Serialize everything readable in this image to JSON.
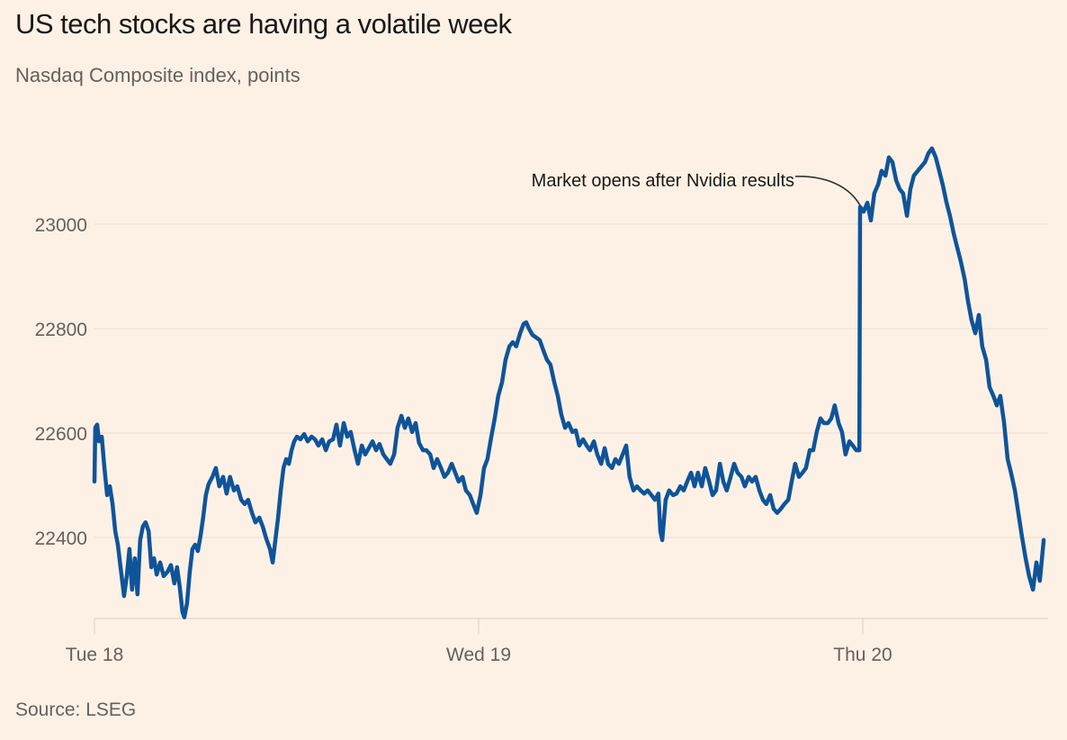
{
  "chart_data": {
    "type": "line",
    "title": "US tech stocks are having a volatile week",
    "subtitle": "Nasdaq Composite index, points",
    "source": "Source: LSEG",
    "xlabel": "",
    "ylabel": "Nasdaq Composite index, points",
    "x_unit": "days since Tue 18 open",
    "x_ticks": [
      {
        "value": 0,
        "label": "Tue 18"
      },
      {
        "value": 1,
        "label": "Wed 19"
      },
      {
        "value": 2,
        "label": "Thu 20"
      }
    ],
    "y_ticks": [
      {
        "value": 22400,
        "label": "22400"
      },
      {
        "value": 22600,
        "label": "22600"
      },
      {
        "value": 22800,
        "label": "22800"
      },
      {
        "value": 23000,
        "label": "23000"
      }
    ],
    "ylim": [
      22245,
      23180
    ],
    "xlim": [
      0,
      2.48
    ],
    "grid": true,
    "line_color": "#0f5499",
    "annotations": [
      {
        "text": "Market opens after Nvidia results",
        "x": 2.0,
        "y": 23033
      }
    ],
    "series": [
      {
        "name": "Nasdaq Composite",
        "points": [
          [
            0.0,
            22507
          ],
          [
            0.002,
            22610
          ],
          [
            0.007,
            22616
          ],
          [
            0.012,
            22584
          ],
          [
            0.019,
            22593
          ],
          [
            0.026,
            22533
          ],
          [
            0.033,
            22481
          ],
          [
            0.04,
            22498
          ],
          [
            0.047,
            22464
          ],
          [
            0.054,
            22412
          ],
          [
            0.061,
            22386
          ],
          [
            0.068,
            22343
          ],
          [
            0.077,
            22288
          ],
          [
            0.084,
            22326
          ],
          [
            0.091,
            22378
          ],
          [
            0.098,
            22300
          ],
          [
            0.105,
            22360
          ],
          [
            0.112,
            22291
          ],
          [
            0.119,
            22395
          ],
          [
            0.126,
            22421
          ],
          [
            0.133,
            22429
          ],
          [
            0.141,
            22412
          ],
          [
            0.148,
            22343
          ],
          [
            0.155,
            22360
          ],
          [
            0.162,
            22329
          ],
          [
            0.171,
            22352
          ],
          [
            0.18,
            22326
          ],
          [
            0.19,
            22334
          ],
          [
            0.199,
            22347
          ],
          [
            0.208,
            22312
          ],
          [
            0.215,
            22343
          ],
          [
            0.222,
            22305
          ],
          [
            0.229,
            22257
          ],
          [
            0.234,
            22247
          ],
          [
            0.241,
            22274
          ],
          [
            0.248,
            22334
          ],
          [
            0.255,
            22378
          ],
          [
            0.262,
            22386
          ],
          [
            0.269,
            22374
          ],
          [
            0.276,
            22403
          ],
          [
            0.283,
            22438
          ],
          [
            0.29,
            22481
          ],
          [
            0.297,
            22502
          ],
          [
            0.307,
            22516
          ],
          [
            0.316,
            22533
          ],
          [
            0.325,
            22498
          ],
          [
            0.335,
            22516
          ],
          [
            0.344,
            22484
          ],
          [
            0.353,
            22516
          ],
          [
            0.363,
            22490
          ],
          [
            0.372,
            22498
          ],
          [
            0.382,
            22472
          ],
          [
            0.391,
            22464
          ],
          [
            0.4,
            22472
          ],
          [
            0.41,
            22447
          ],
          [
            0.419,
            22429
          ],
          [
            0.429,
            22438
          ],
          [
            0.438,
            22421
          ],
          [
            0.447,
            22398
          ],
          [
            0.457,
            22378
          ],
          [
            0.464,
            22352
          ],
          [
            0.471,
            22395
          ],
          [
            0.478,
            22438
          ],
          [
            0.485,
            22490
          ],
          [
            0.492,
            22533
          ],
          [
            0.499,
            22550
          ],
          [
            0.506,
            22541
          ],
          [
            0.513,
            22567
          ],
          [
            0.52,
            22584
          ],
          [
            0.527,
            22593
          ],
          [
            0.536,
            22588
          ],
          [
            0.546,
            22598
          ],
          [
            0.555,
            22584
          ],
          [
            0.565,
            22593
          ],
          [
            0.574,
            22588
          ],
          [
            0.583,
            22576
          ],
          [
            0.593,
            22588
          ],
          [
            0.602,
            22567
          ],
          [
            0.611,
            22584
          ],
          [
            0.621,
            22588
          ],
          [
            0.63,
            22616
          ],
          [
            0.639,
            22576
          ],
          [
            0.649,
            22619
          ],
          [
            0.658,
            22593
          ],
          [
            0.667,
            22602
          ],
          [
            0.677,
            22567
          ],
          [
            0.686,
            22541
          ],
          [
            0.696,
            22576
          ],
          [
            0.705,
            22559
          ],
          [
            0.714,
            22571
          ],
          [
            0.724,
            22584
          ],
          [
            0.733,
            22567
          ],
          [
            0.742,
            22579
          ],
          [
            0.752,
            22559
          ],
          [
            0.761,
            22550
          ],
          [
            0.77,
            22541
          ],
          [
            0.78,
            22559
          ],
          [
            0.789,
            22610
          ],
          [
            0.799,
            22633
          ],
          [
            0.808,
            22610
          ],
          [
            0.817,
            22628
          ],
          [
            0.827,
            22602
          ],
          [
            0.836,
            22619
          ],
          [
            0.845,
            22581
          ],
          [
            0.855,
            22567
          ],
          [
            0.864,
            22567
          ],
          [
            0.874,
            22559
          ],
          [
            0.883,
            22533
          ],
          [
            0.892,
            22550
          ],
          [
            0.902,
            22533
          ],
          [
            0.911,
            22516
          ],
          [
            0.92,
            22524
          ],
          [
            0.93,
            22541
          ],
          [
            0.939,
            22524
          ],
          [
            0.948,
            22507
          ],
          [
            0.958,
            22516
          ],
          [
            0.967,
            22490
          ],
          [
            0.977,
            22481
          ],
          [
            0.986,
            22464
          ],
          [
            0.995,
            22447
          ],
          [
            1.005,
            22481
          ],
          [
            1.014,
            22533
          ],
          [
            1.023,
            22550
          ],
          [
            1.033,
            22593
          ],
          [
            1.042,
            22628
          ],
          [
            1.051,
            22671
          ],
          [
            1.061,
            22697
          ],
          [
            1.07,
            22740
          ],
          [
            1.08,
            22766
          ],
          [
            1.089,
            22774
          ],
          [
            1.098,
            22766
          ],
          [
            1.108,
            22791
          ],
          [
            1.117,
            22809
          ],
          [
            1.124,
            22812
          ],
          [
            1.131,
            22800
          ],
          [
            1.14,
            22788
          ],
          [
            1.15,
            22783
          ],
          [
            1.159,
            22778
          ],
          [
            1.169,
            22757
          ],
          [
            1.178,
            22740
          ],
          [
            1.187,
            22731
          ],
          [
            1.197,
            22697
          ],
          [
            1.206,
            22671
          ],
          [
            1.215,
            22636
          ],
          [
            1.225,
            22610
          ],
          [
            1.234,
            22619
          ],
          [
            1.244,
            22602
          ],
          [
            1.253,
            22605
          ],
          [
            1.262,
            22576
          ],
          [
            1.272,
            22588
          ],
          [
            1.281,
            22576
          ],
          [
            1.29,
            22567
          ],
          [
            1.3,
            22584
          ],
          [
            1.309,
            22559
          ],
          [
            1.319,
            22541
          ],
          [
            1.328,
            22571
          ],
          [
            1.337,
            22541
          ],
          [
            1.347,
            22533
          ],
          [
            1.356,
            22550
          ],
          [
            1.365,
            22541
          ],
          [
            1.375,
            22559
          ],
          [
            1.384,
            22576
          ],
          [
            1.393,
            22516
          ],
          [
            1.403,
            22490
          ],
          [
            1.412,
            22498
          ],
          [
            1.422,
            22490
          ],
          [
            1.431,
            22484
          ],
          [
            1.44,
            22490
          ],
          [
            1.45,
            22481
          ],
          [
            1.459,
            22472
          ],
          [
            1.468,
            22484
          ],
          [
            1.473,
            22412
          ],
          [
            1.478,
            22395
          ],
          [
            1.487,
            22472
          ],
          [
            1.496,
            22490
          ],
          [
            1.506,
            22481
          ],
          [
            1.515,
            22484
          ],
          [
            1.525,
            22498
          ],
          [
            1.534,
            22490
          ],
          [
            1.543,
            22507
          ],
          [
            1.553,
            22524
          ],
          [
            1.562,
            22498
          ],
          [
            1.571,
            22524
          ],
          [
            1.581,
            22498
          ],
          [
            1.59,
            22533
          ],
          [
            1.6,
            22507
          ],
          [
            1.609,
            22481
          ],
          [
            1.618,
            22490
          ],
          [
            1.628,
            22541
          ],
          [
            1.637,
            22507
          ],
          [
            1.646,
            22490
          ],
          [
            1.656,
            22516
          ],
          [
            1.665,
            22541
          ],
          [
            1.674,
            22524
          ],
          [
            1.684,
            22516
          ],
          [
            1.693,
            22498
          ],
          [
            1.703,
            22516
          ],
          [
            1.712,
            22507
          ],
          [
            1.721,
            22516
          ],
          [
            1.731,
            22490
          ],
          [
            1.74,
            22472
          ],
          [
            1.749,
            22464
          ],
          [
            1.759,
            22481
          ],
          [
            1.768,
            22455
          ],
          [
            1.777,
            22447
          ],
          [
            1.787,
            22455
          ],
          [
            1.796,
            22464
          ],
          [
            1.806,
            22472
          ],
          [
            1.815,
            22507
          ],
          [
            1.824,
            22541
          ],
          [
            1.834,
            22516
          ],
          [
            1.843,
            22524
          ],
          [
            1.852,
            22533
          ],
          [
            1.862,
            22567
          ],
          [
            1.871,
            22567
          ],
          [
            1.88,
            22602
          ],
          [
            1.89,
            22628
          ],
          [
            1.899,
            22619
          ],
          [
            1.909,
            22619
          ],
          [
            1.918,
            22628
          ],
          [
            1.927,
            22653
          ],
          [
            1.937,
            22619
          ],
          [
            1.946,
            22602
          ],
          [
            1.955,
            22559
          ],
          [
            1.965,
            22584
          ],
          [
            1.974,
            22576
          ],
          [
            1.983,
            22567
          ],
          [
            1.991,
            22567
          ],
          [
            1.993,
            23033
          ],
          [
            2.002,
            23024
          ],
          [
            2.012,
            23041
          ],
          [
            2.021,
            23007
          ],
          [
            2.03,
            23059
          ],
          [
            2.04,
            23076
          ],
          [
            2.049,
            23102
          ],
          [
            2.059,
            23093
          ],
          [
            2.068,
            23128
          ],
          [
            2.077,
            23119
          ],
          [
            2.087,
            23084
          ],
          [
            2.096,
            23067
          ],
          [
            2.105,
            23059
          ],
          [
            2.115,
            23016
          ],
          [
            2.124,
            23067
          ],
          [
            2.133,
            23093
          ],
          [
            2.143,
            23102
          ],
          [
            2.152,
            23110
          ],
          [
            2.162,
            23119
          ],
          [
            2.171,
            23136
          ],
          [
            2.18,
            23145
          ],
          [
            2.19,
            23128
          ],
          [
            2.199,
            23102
          ],
          [
            2.208,
            23076
          ],
          [
            2.218,
            23041
          ],
          [
            2.227,
            23016
          ],
          [
            2.237,
            22981
          ],
          [
            2.246,
            22955
          ],
          [
            2.255,
            22929
          ],
          [
            2.265,
            22895
          ],
          [
            2.274,
            22852
          ],
          [
            2.283,
            22817
          ],
          [
            2.293,
            22791
          ],
          [
            2.302,
            22826
          ],
          [
            2.311,
            22766
          ],
          [
            2.321,
            22740
          ],
          [
            2.33,
            22688
          ],
          [
            2.34,
            22671
          ],
          [
            2.349,
            22653
          ],
          [
            2.358,
            22671
          ],
          [
            2.368,
            22619
          ],
          [
            2.377,
            22550
          ],
          [
            2.386,
            22524
          ],
          [
            2.396,
            22490
          ],
          [
            2.405,
            22447
          ],
          [
            2.414,
            22403
          ],
          [
            2.424,
            22360
          ],
          [
            2.433,
            22326
          ],
          [
            2.443,
            22300
          ],
          [
            2.452,
            22352
          ],
          [
            2.461,
            22317
          ],
          [
            2.471,
            22395
          ]
        ]
      }
    ]
  }
}
